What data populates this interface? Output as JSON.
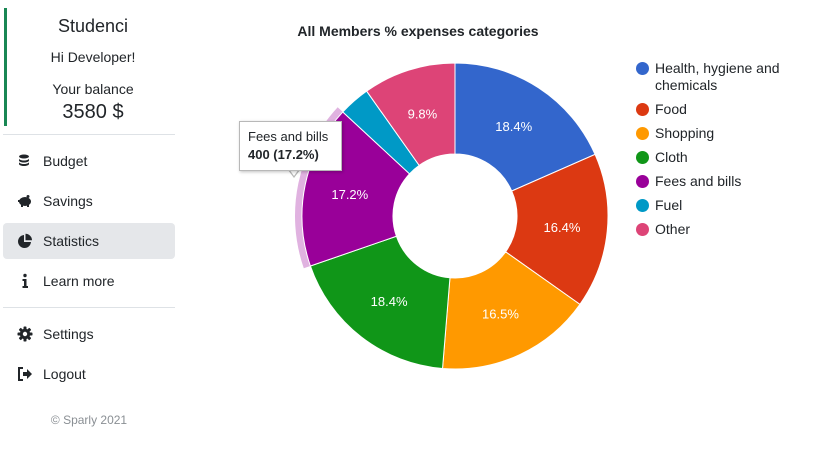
{
  "sidebar": {
    "brand": "Studenci",
    "greeting": "Hi Developer!",
    "balance_label": "Your balance",
    "balance_value": "3580 $",
    "nav": [
      {
        "label": "Budget",
        "icon": "coins-icon",
        "active": false
      },
      {
        "label": "Savings",
        "icon": "piggy-bank-icon",
        "active": false
      },
      {
        "label": "Statistics",
        "icon": "pie-chart-icon",
        "active": true
      },
      {
        "label": "Learn more",
        "icon": "info-icon",
        "active": false
      }
    ],
    "nav_secondary": [
      {
        "label": "Settings",
        "icon": "gear-icon"
      },
      {
        "label": "Logout",
        "icon": "logout-icon"
      }
    ],
    "footer": "© Sparly 2021",
    "accent_color": "#198754"
  },
  "tooltip": {
    "title": "Fees and bills",
    "value": "400 (17.2%)"
  },
  "chart_data": {
    "type": "pie",
    "title": "All Members % expenses categories",
    "donut": true,
    "legend_position": "right",
    "highlighted": "Fees and bills",
    "categories": [
      "Health, hygiene and chemicals",
      "Food",
      "Shopping",
      "Cloth",
      "Fees and bills",
      "Fuel",
      "Other"
    ],
    "values": [
      18.4,
      16.4,
      16.5,
      18.4,
      17.2,
      3.3,
      9.8
    ],
    "labels": [
      "18.4%",
      "16.4%",
      "16.5%",
      "18.4%",
      "17.2%",
      "",
      "9.8%"
    ],
    "colors": [
      "#3366cc",
      "#dc3912",
      "#ff9900",
      "#109618",
      "#990099",
      "#0099c6",
      "#dd4477"
    ]
  }
}
